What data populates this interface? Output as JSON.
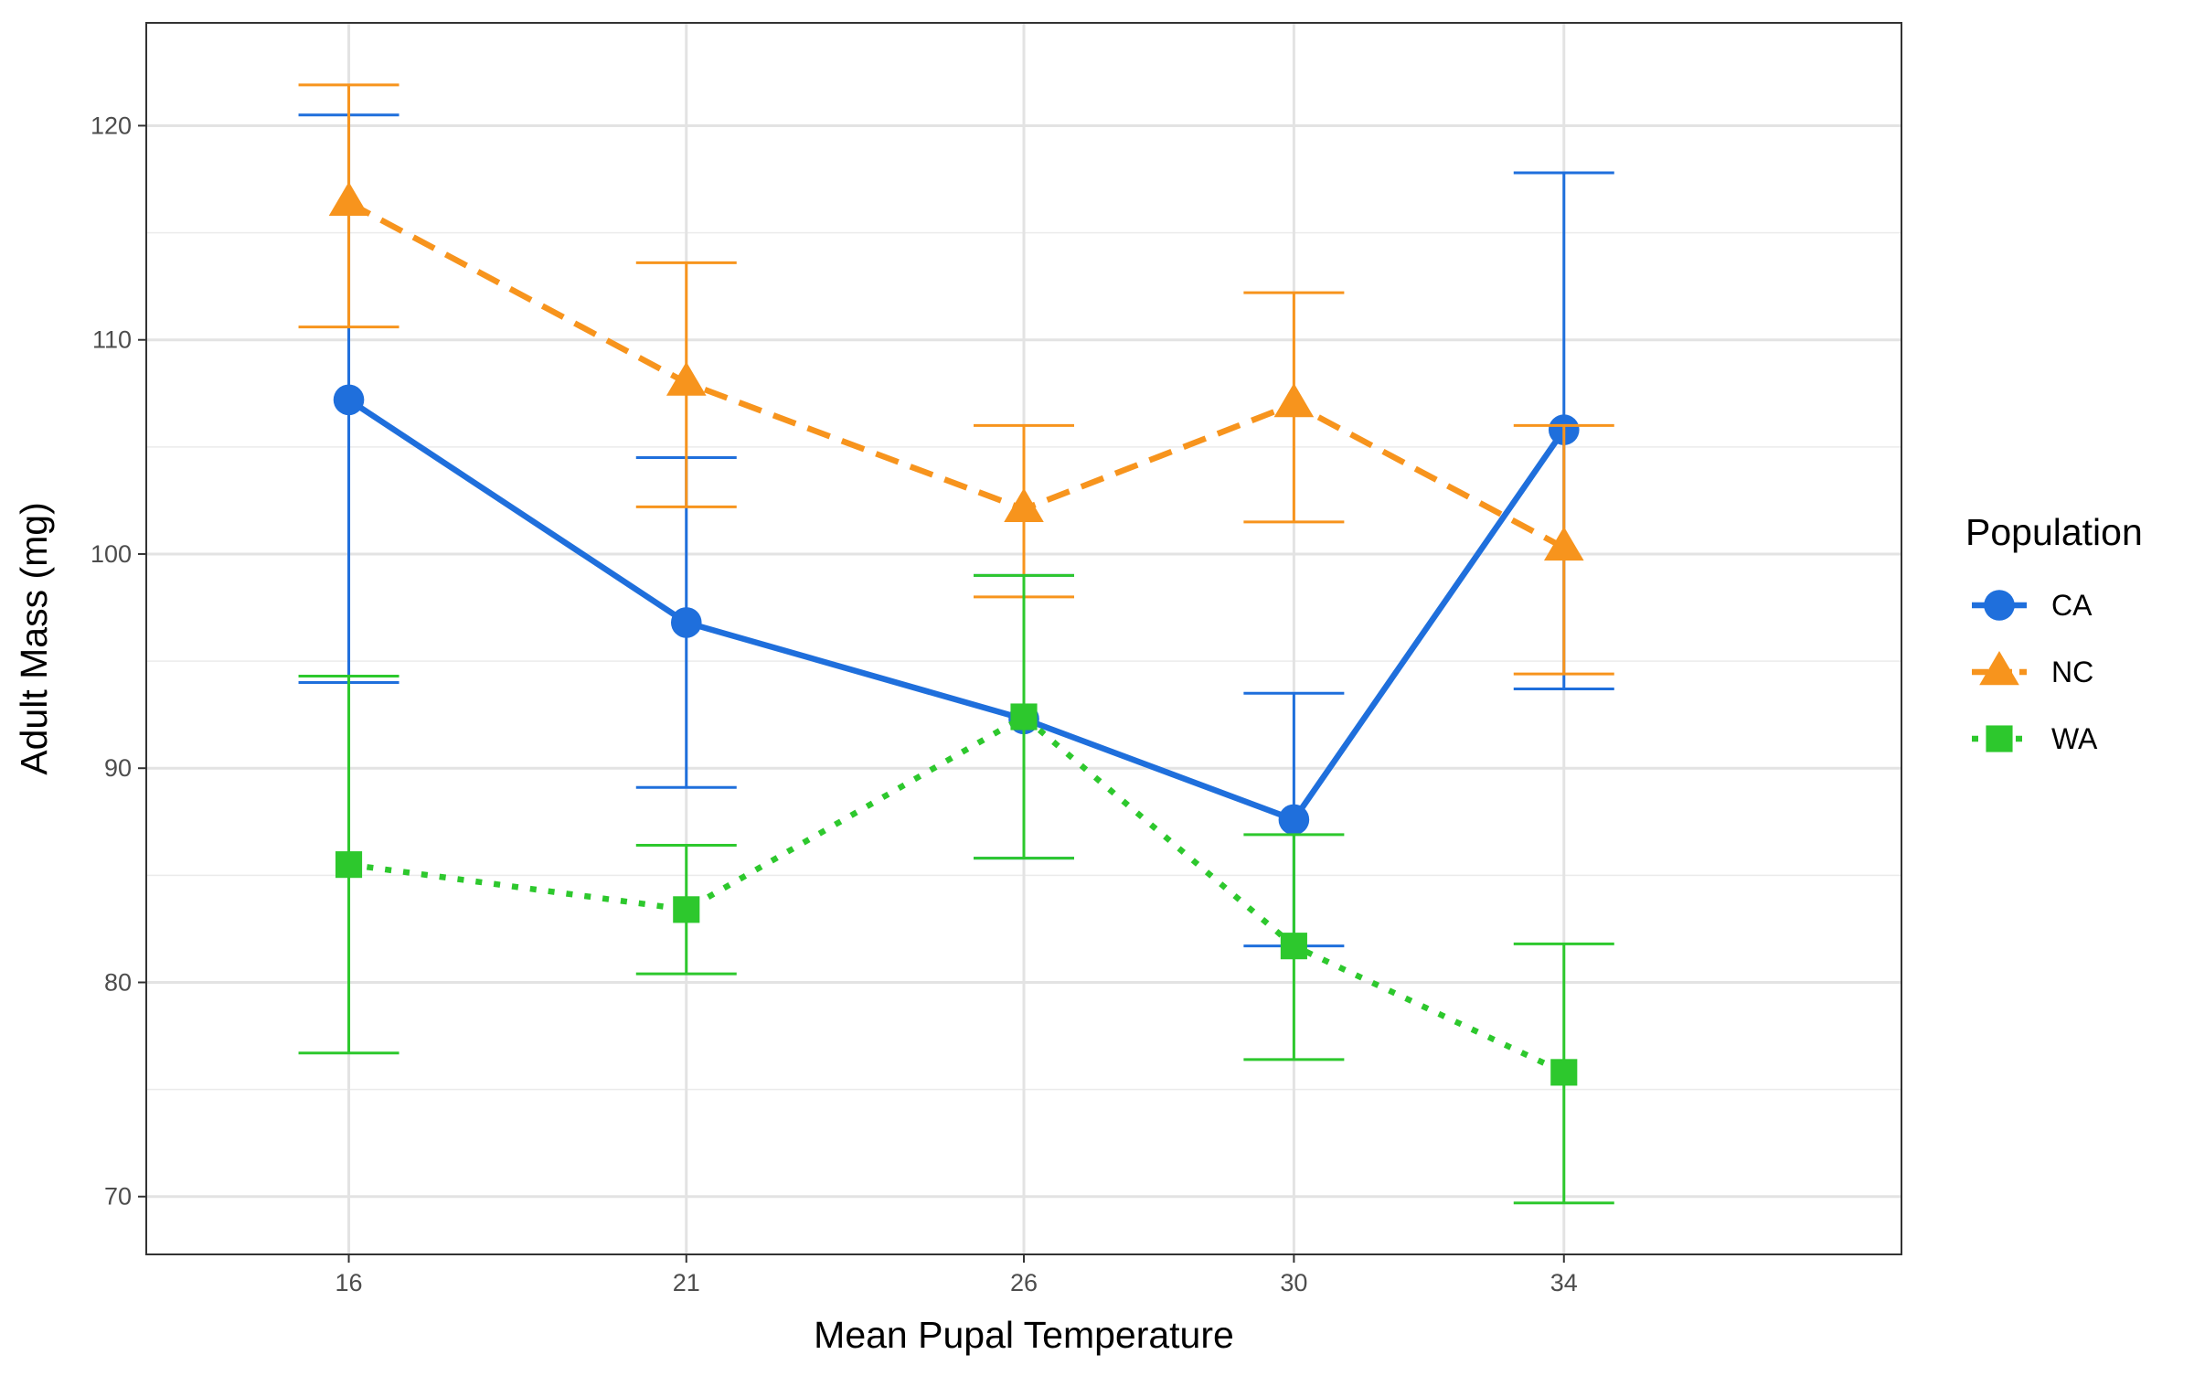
{
  "chart_data": {
    "type": "line",
    "xlabel": "Mean Pupal Temperature",
    "ylabel": "Adult Mass (mg)",
    "x_categories": [
      "16",
      "21",
      "26",
      "30",
      "34"
    ],
    "x_lim": [
      13,
      39
    ],
    "ylim": [
      67.3,
      124.8
    ],
    "y_ticks": [
      70,
      80,
      90,
      100,
      110,
      120
    ],
    "grid": true,
    "legend": {
      "title": "Population",
      "placement": "right"
    },
    "series": [
      {
        "name": "CA",
        "color": "#1f6fdc",
        "marker": "circle",
        "linestyle": "solid",
        "points": [
          {
            "x": 16,
            "y": 107.2,
            "lower": 94.0,
            "upper": 120.5
          },
          {
            "x": 21,
            "y": 96.8,
            "lower": 89.1,
            "upper": 104.5
          },
          {
            "x": 26,
            "y": 92.3,
            "lower": 85.8,
            "upper": 99.0
          },
          {
            "x": 30,
            "y": 87.6,
            "lower": 81.7,
            "upper": 93.5
          },
          {
            "x": 34,
            "y": 105.8,
            "lower": 93.7,
            "upper": 117.8
          }
        ]
      },
      {
        "name": "NC",
        "color": "#f7941d",
        "marker": "triangle",
        "linestyle": "dashed",
        "points": [
          {
            "x": 16,
            "y": 116.4,
            "lower": 110.6,
            "upper": 121.9
          },
          {
            "x": 21,
            "y": 108.0,
            "lower": 102.2,
            "upper": 113.6
          },
          {
            "x": 26,
            "y": 102.1,
            "lower": 98.0,
            "upper": 106.0
          },
          {
            "x": 30,
            "y": 107.0,
            "lower": 101.5,
            "upper": 112.2
          },
          {
            "x": 34,
            "y": 100.3,
            "lower": 94.4,
            "upper": 106.0
          }
        ]
      },
      {
        "name": "WA",
        "color": "#2dc82d",
        "marker": "square",
        "linestyle": "dotted",
        "points": [
          {
            "x": 16,
            "y": 85.5,
            "lower": 76.7,
            "upper": 94.3
          },
          {
            "x": 21,
            "y": 83.4,
            "lower": 80.4,
            "upper": 86.4
          },
          {
            "x": 26,
            "y": 92.4,
            "lower": 85.8,
            "upper": 99.0
          },
          {
            "x": 30,
            "y": 81.7,
            "lower": 76.4,
            "upper": 86.9
          },
          {
            "x": 34,
            "y": 75.8,
            "lower": 69.7,
            "upper": 81.8
          }
        ]
      }
    ]
  }
}
